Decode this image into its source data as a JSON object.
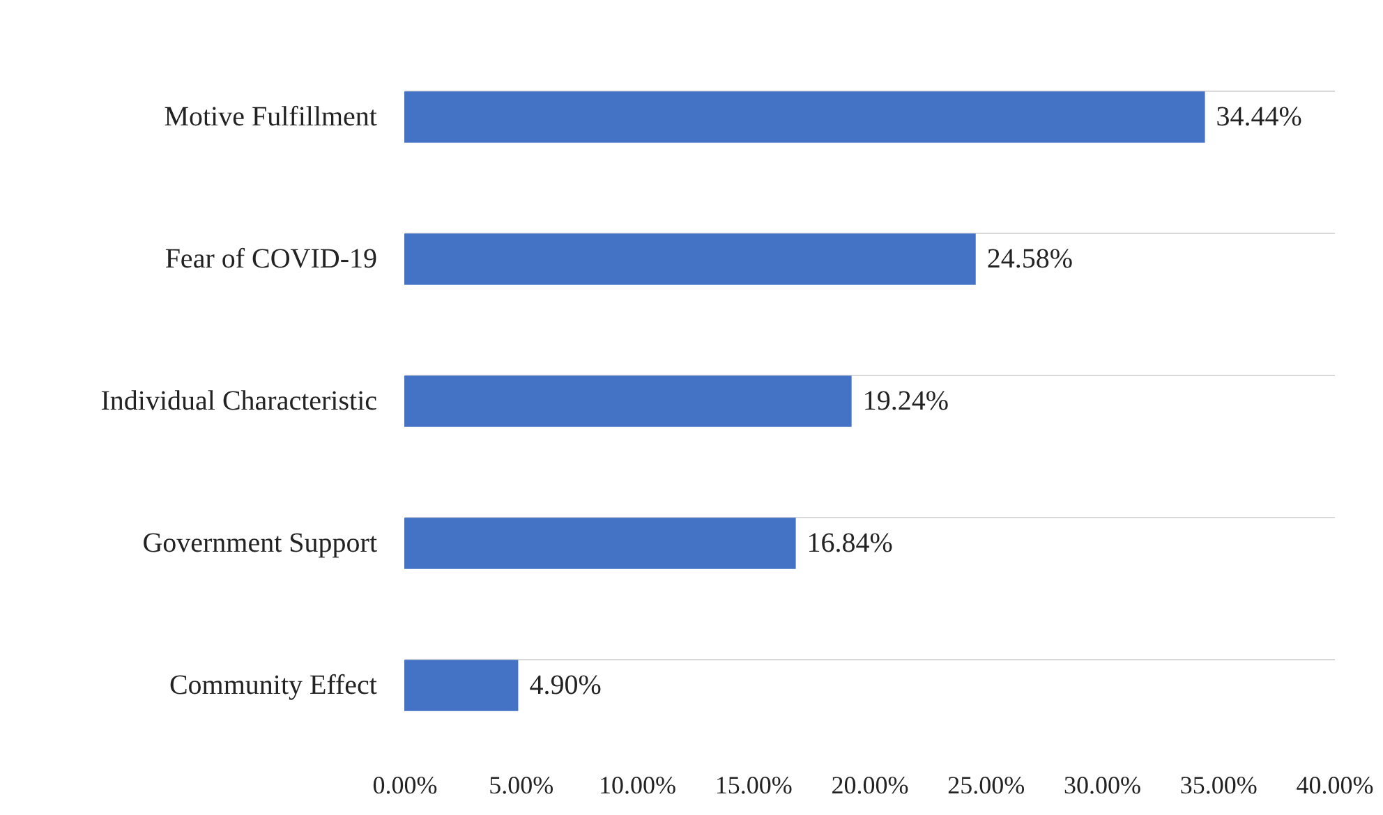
{
  "chart_data": {
    "type": "bar",
    "orientation": "horizontal",
    "categories": [
      "Motive Fulfillment",
      "Fear of COVID-19",
      "Individual Characteristic",
      "Government Support",
      "Community Effect"
    ],
    "values": [
      34.44,
      24.58,
      19.24,
      16.84,
      4.9
    ],
    "value_labels": [
      "34.44%",
      "24.58%",
      "19.24%",
      "16.84%",
      "4.90%"
    ],
    "color": "#4472c4",
    "xlim": [
      0,
      40
    ],
    "xticks": [
      {
        "value": 0,
        "label": "0.00%"
      },
      {
        "value": 5,
        "label": "5.00%"
      },
      {
        "value": 10,
        "label": "10.00%"
      },
      {
        "value": 15,
        "label": "15.00%"
      },
      {
        "value": 20,
        "label": "20.00%"
      },
      {
        "value": 25,
        "label": "25.00%"
      },
      {
        "value": 30,
        "label": "30.00%"
      },
      {
        "value": 35,
        "label": "35.00%"
      },
      {
        "value": 40,
        "label": "40.00%"
      }
    ],
    "grid": "y"
  }
}
